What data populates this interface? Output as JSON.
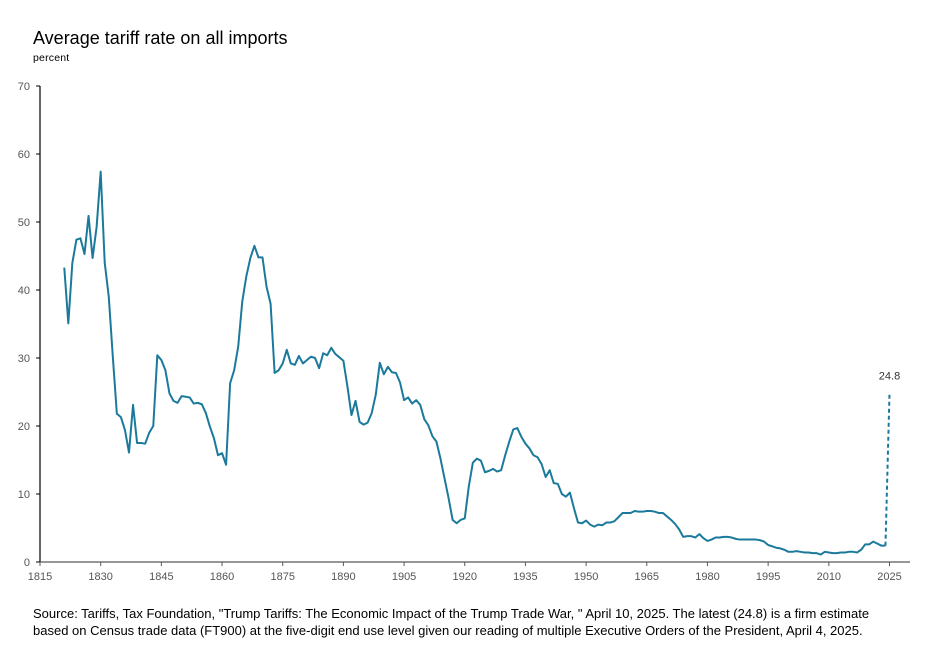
{
  "chart_data": {
    "type": "line",
    "title": "Average tariff rate on all imports",
    "subtitle": "percent",
    "xlabel": "",
    "ylabel": "percent",
    "xlim": [
      1815,
      2025
    ],
    "ylim": [
      0,
      70
    ],
    "x_ticks": [
      1815,
      1830,
      1845,
      1860,
      1875,
      1890,
      1905,
      1920,
      1935,
      1950,
      1965,
      1980,
      1995,
      2010,
      2025
    ],
    "y_ticks": [
      0,
      10,
      20,
      30,
      40,
      50,
      60,
      70
    ],
    "grid": false,
    "legend": "none",
    "line_color": "#1B7A9C",
    "series": [
      {
        "name": "Average tariff rate",
        "style": "solid",
        "x": [
          1821,
          1822,
          1823,
          1824,
          1825,
          1826,
          1827,
          1828,
          1829,
          1830,
          1831,
          1832,
          1833,
          1834,
          1835,
          1836,
          1837,
          1838,
          1839,
          1840,
          1841,
          1842,
          1843,
          1844,
          1845,
          1846,
          1847,
          1848,
          1849,
          1850,
          1851,
          1852,
          1853,
          1854,
          1855,
          1856,
          1857,
          1858,
          1859,
          1860,
          1861,
          1862,
          1863,
          1864,
          1865,
          1866,
          1867,
          1868,
          1869,
          1870,
          1871,
          1872,
          1873,
          1874,
          1875,
          1876,
          1877,
          1878,
          1879,
          1880,
          1881,
          1882,
          1883,
          1884,
          1885,
          1886,
          1887,
          1888,
          1889,
          1890,
          1891,
          1892,
          1893,
          1894,
          1895,
          1896,
          1897,
          1898,
          1899,
          1900,
          1901,
          1902,
          1903,
          1904,
          1905,
          1906,
          1907,
          1908,
          1909,
          1910,
          1911,
          1912,
          1913,
          1914,
          1915,
          1916,
          1917,
          1918,
          1919,
          1920,
          1921,
          1922,
          1923,
          1924,
          1925,
          1926,
          1927,
          1928,
          1929,
          1930,
          1931,
          1932,
          1933,
          1934,
          1935,
          1936,
          1937,
          1938,
          1939,
          1940,
          1941,
          1942,
          1943,
          1944,
          1945,
          1946,
          1947,
          1948,
          1949,
          1950,
          1951,
          1952,
          1953,
          1954,
          1955,
          1956,
          1957,
          1958,
          1959,
          1960,
          1961,
          1962,
          1963,
          1964,
          1965,
          1966,
          1967,
          1968,
          1969,
          1970,
          1971,
          1972,
          1973,
          1974,
          1975,
          1976,
          1977,
          1978,
          1979,
          1980,
          1981,
          1982,
          1983,
          1984,
          1985,
          1986,
          1987,
          1988,
          1989,
          1990,
          1991,
          1992,
          1993,
          1994,
          1995,
          1996,
          1997,
          1998,
          1999,
          2000,
          2001,
          2002,
          2003,
          2004,
          2005,
          2006,
          2007,
          2008,
          2009,
          2010,
          2011,
          2012,
          2013,
          2014,
          2015,
          2016,
          2017,
          2018,
          2019,
          2020,
          2021,
          2022,
          2023,
          2024
        ],
        "values": [
          43.3,
          35.1,
          44.0,
          47.4,
          47.6,
          45.3,
          50.9,
          44.7,
          49.3,
          57.4,
          44.0,
          39.0,
          30.2,
          21.8,
          21.3,
          19.4,
          16.1,
          23.1,
          17.5,
          17.5,
          17.4,
          19.0,
          20.0,
          30.4,
          29.7,
          28.2,
          24.8,
          23.7,
          23.4,
          24.4,
          24.3,
          24.2,
          23.3,
          23.4,
          23.2,
          21.9,
          19.9,
          18.2,
          15.7,
          16.0,
          14.3,
          26.3,
          28.2,
          31.7,
          38.3,
          42.0,
          44.7,
          46.5,
          44.8,
          44.8,
          40.5,
          38.0,
          27.8,
          28.2,
          29.2,
          31.2,
          29.2,
          29.0,
          30.3,
          29.2,
          29.7,
          30.2,
          30.0,
          28.5,
          30.7,
          30.4,
          31.5,
          30.6,
          30.1,
          29.6,
          25.8,
          21.6,
          23.7,
          20.6,
          20.2,
          20.5,
          21.9,
          24.6,
          29.3,
          27.6,
          28.7,
          27.9,
          27.8,
          26.4,
          23.8,
          24.2,
          23.3,
          23.8,
          23.1,
          21.0,
          20.1,
          18.5,
          17.7,
          15.2,
          12.3,
          9.4,
          6.2,
          5.7,
          6.2,
          6.4,
          11.1,
          14.6,
          15.2,
          14.9,
          13.2,
          13.4,
          13.7,
          13.3,
          13.5,
          15.7,
          17.7,
          19.5,
          19.7,
          18.4,
          17.4,
          16.7,
          15.7,
          15.4,
          14.4,
          12.5,
          13.5,
          11.6,
          11.5,
          10.0,
          9.6,
          10.2,
          7.9,
          5.8,
          5.7,
          6.1,
          5.5,
          5.2,
          5.5,
          5.4,
          5.8,
          5.8,
          6.0,
          6.6,
          7.2,
          7.2,
          7.2,
          7.5,
          7.4,
          7.4,
          7.5,
          7.5,
          7.4,
          7.2,
          7.2,
          6.7,
          6.2,
          5.6,
          4.8,
          3.7,
          3.8,
          3.8,
          3.6,
          4.1,
          3.5,
          3.1,
          3.3,
          3.6,
          3.6,
          3.7,
          3.7,
          3.6,
          3.4,
          3.3,
          3.3,
          3.3,
          3.3,
          3.3,
          3.2,
          3.0,
          2.5,
          2.3,
          2.1,
          2.0,
          1.8,
          1.5,
          1.5,
          1.6,
          1.5,
          1.4,
          1.4,
          1.3,
          1.3,
          1.1,
          1.5,
          1.4,
          1.3,
          1.3,
          1.4,
          1.4,
          1.5,
          1.5,
          1.4,
          1.8,
          2.6,
          2.6,
          3.0,
          2.7,
          2.4,
          2.4
        ]
      },
      {
        "name": "Latest firm estimate",
        "style": "dashed",
        "x": [
          2024,
          2025
        ],
        "values": [
          2.4,
          24.8
        ]
      }
    ],
    "annotations": [
      {
        "text": "24.8",
        "x": 2025,
        "y": 24.8
      }
    ]
  },
  "footer": {
    "source_line1": "Source: Tariffs, Tax Foundation, \"Trump Tariffs: The Economic Impact of the Trump Trade War, \" April 10, 2025. The latest (24.8) is a firm estimate",
    "source_line2": "based on Census trade data (FT900) at the five-digit end use level given our reading of multiple Executive Orders of the President, April 4, 2025."
  }
}
